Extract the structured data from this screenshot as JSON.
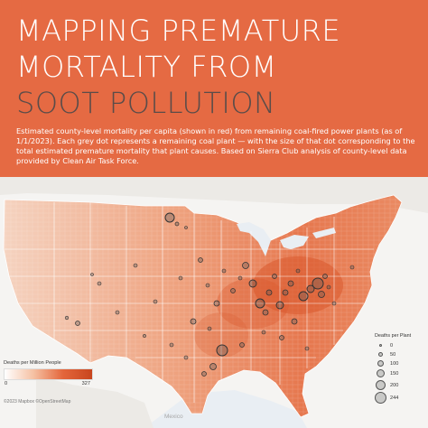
{
  "title": {
    "line1": "MAPPING PREMATURE",
    "line2": "MORTALITY FROM",
    "line3": "SOOT POLLUTION"
  },
  "subtitle": "Estimated county-level mortality per capita (shown in red) from remaining coal-fired power plants (as of 1/1/2023). Each grey dot represents a remaining coal plant — with the size of that dot corresponding to the total estimated premature mortality that plant causes. Based on Sierra Club analysis of county-level data provided by Clean Air Task Force.",
  "colors": {
    "header_bg": "#e56a43",
    "accent_dark": "#5a4c49",
    "mortality_low": "#ffffff",
    "mortality_high": "#c8451e",
    "plant_dot": "#555555"
  },
  "legend_mortality": {
    "title": "Deaths per Million People",
    "min": "0",
    "max": "327"
  },
  "legend_plants": {
    "title": "Deaths per Plant",
    "items": [
      {
        "label": "0",
        "value": 0
      },
      {
        "label": "50",
        "value": 50
      },
      {
        "label": "100",
        "value": 100
      },
      {
        "label": "150",
        "value": 150
      },
      {
        "label": "200",
        "value": 200
      },
      {
        "label": "244",
        "value": 244
      }
    ]
  },
  "attribution": "©2023 Mapbox ©OpenStreetMap",
  "map_labels": {
    "mexico": "Mexico"
  }
}
